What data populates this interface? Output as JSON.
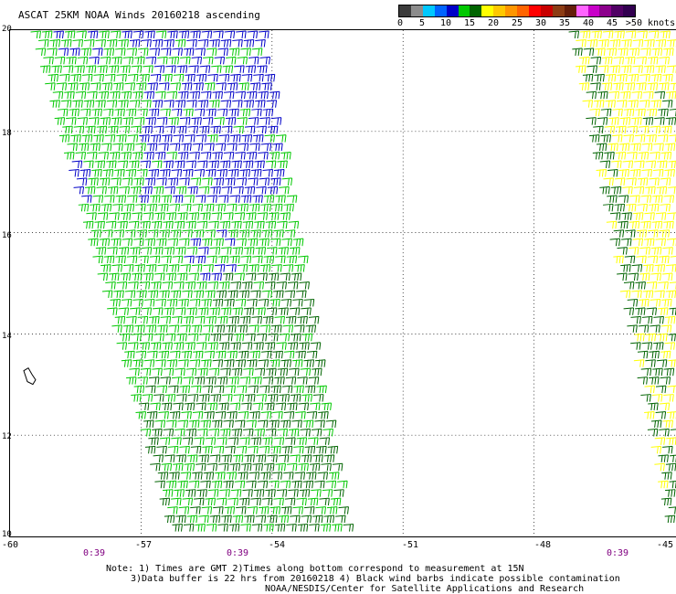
{
  "title": "ASCAT 25KM NOAA Winds 20160218 ascending",
  "legend": {
    "labels": [
      "0",
      "5",
      "10",
      "15",
      "20",
      "25",
      "30",
      "35",
      "40",
      "45",
      ">50 knots"
    ],
    "colors": [
      "#3c3c3c",
      "#8c8c8c",
      "#00c8ff",
      "#0064ff",
      "#0000c8",
      "#00c800",
      "#006400",
      "#ffff00",
      "#ffc800",
      "#ff9600",
      "#ff6400",
      "#ff0000",
      "#c80000",
      "#8c3c14",
      "#641e0a",
      "#ff64ff",
      "#c800c8",
      "#8c008c",
      "#500064",
      "#320050"
    ]
  },
  "map": {
    "lat_labels": [
      "20",
      "18",
      "16",
      "14",
      "12",
      "10"
    ],
    "lon_labels": [
      "-60",
      "-57",
      "-54",
      "-51",
      "-48",
      "-45"
    ],
    "time_labels": [
      "0:39",
      "0:39",
      "0:39"
    ]
  },
  "notes": {
    "line1": "Note: 1) Times are GMT 2)Times along bottom correspond to measurement at 15N",
    "line2": "3)Data buffer is 22 hrs from 20160218 4) Black wind barbs indicate possible contamination",
    "line3": "NOAA/NESDIS/Center for Satellite Applications and Research"
  },
  "swaths": [
    {
      "name": "west swath",
      "lon_range_top": [
        -60,
        -54.2
      ],
      "lon_range_bottom": [
        -56.8,
        -52.2
      ]
    },
    {
      "name": "east swath",
      "lon_range_top": [
        -47.2,
        -45
      ],
      "lon_range_bottom": [
        -45.3,
        -45
      ]
    }
  ]
}
